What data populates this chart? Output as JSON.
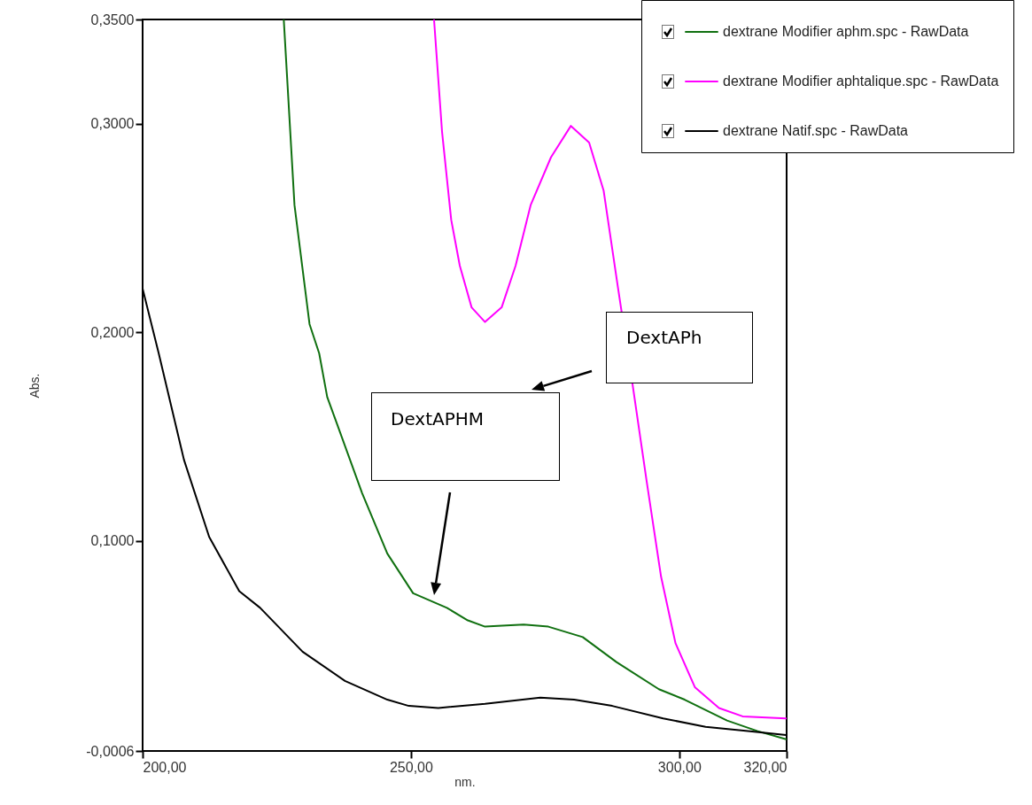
{
  "chart_data": {
    "type": "line",
    "xlabel": "nm.",
    "ylabel": "Abs.",
    "xlim": [
      200,
      320
    ],
    "xticks": [
      {
        "value": 200,
        "label": "200,00"
      },
      {
        "value": 250,
        "label": "250,00"
      },
      {
        "value": 300,
        "label": "300,00"
      },
      {
        "value": 320,
        "label": "320,00"
      }
    ],
    "ylim": [
      -0.0006,
      0.35
    ],
    "yticks": [
      {
        "value": -0.0006,
        "label": "-0,0006"
      },
      {
        "value": 0.1,
        "label": "0,1000"
      },
      {
        "value": 0.2,
        "label": "0,2000"
      },
      {
        "value": 0.3,
        "label": "0,3000"
      },
      {
        "value": 0.35,
        "label": "0,3500"
      }
    ],
    "legend": "top right",
    "marker": "none",
    "line_style": "solid",
    "annotations": [
      "DextAPh",
      "DextAPHM"
    ],
    "series": [
      {
        "name": "dextrane Modifier aphm.spc - RawData",
        "color": "#107010",
        "x": [
          226.3,
          228.3,
          231.1,
          232.9,
          234.4,
          236.1,
          240.9,
          245.6,
          250.4,
          256.7,
          260.6,
          263.8,
          271,
          275.6,
          282,
          288.3,
          296.2,
          301,
          308.9,
          314.5,
          319.9
        ],
        "values": [
          0.35,
          0.261,
          0.204,
          0.19,
          0.169,
          0.157,
          0.123,
          0.094,
          0.075,
          0.068,
          0.062,
          0.059,
          0.06,
          0.059,
          0.054,
          0.042,
          0.029,
          0.024,
          0.014,
          0.009,
          0.005
        ]
      },
      {
        "name": "dextrane Modifier aphtalique.spc - RawData",
        "color": "#ff00ff",
        "x": [
          254.3,
          255.8,
          257.5,
          259.1,
          261.3,
          263.8,
          266.9,
          269.5,
          272.3,
          276.1,
          279.8,
          283.2,
          285.9,
          288.6,
          291.3,
          293.9,
          296.6,
          299.3,
          302.9,
          307.4,
          311.8,
          319.9
        ],
        "values": [
          0.35,
          0.296,
          0.254,
          0.232,
          0.212,
          0.205,
          0.212,
          0.232,
          0.261,
          0.284,
          0.299,
          0.291,
          0.268,
          0.221,
          0.175,
          0.129,
          0.083,
          0.051,
          0.03,
          0.02,
          0.016,
          0.015
        ]
      },
      {
        "name": "dextrane Natif.spc - RawData",
        "color": "#000000",
        "x": [
          200,
          203,
          207.7,
          212.4,
          218,
          221.9,
          229.8,
          237.7,
          245.6,
          249.6,
          255.1,
          263.8,
          274.1,
          280.4,
          287.5,
          297,
          304.9,
          312.8,
          319.9
        ],
        "values": [
          0.221,
          0.19,
          0.139,
          0.102,
          0.076,
          0.068,
          0.047,
          0.033,
          0.024,
          0.021,
          0.02,
          0.022,
          0.025,
          0.024,
          0.021,
          0.015,
          0.011,
          0.009,
          0.007
        ]
      }
    ]
  }
}
